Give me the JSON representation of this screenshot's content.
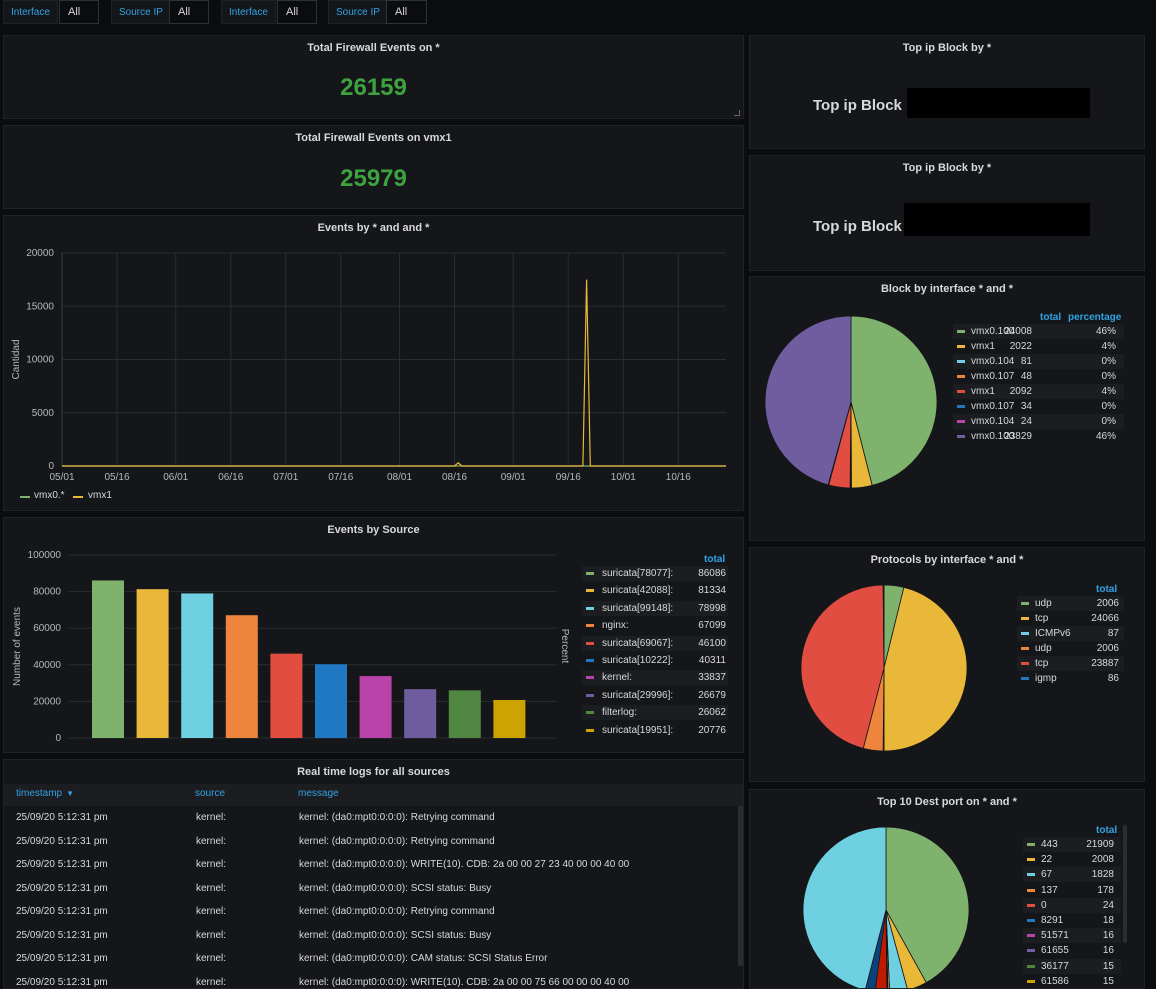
{
  "variables": [
    {
      "label": "Interface",
      "value": "All"
    },
    {
      "label": "Source IP",
      "value": "All"
    },
    {
      "label": "Interface",
      "value": "All"
    },
    {
      "label": "Source IP",
      "value": "All"
    }
  ],
  "stat1": {
    "title": "Total Firewall Events on *",
    "value": "26159"
  },
  "stat2": {
    "title": "Total Firewall Events on vmx1",
    "value": "25979"
  },
  "topip1": {
    "title": "Top ip Block by *",
    "label": "Top ip Block"
  },
  "topip2": {
    "title": "Top ip Block by *",
    "label": "Top ip Block"
  },
  "colors": {
    "green": "#7eb26d",
    "yellow": "#eab839",
    "cyan": "#6ed0e0",
    "orange": "#ef843c",
    "red": "#e24d42",
    "blue": "#1f78c1",
    "magenta": "#ba43a9",
    "purple": "#705da0",
    "darkgreen": "#508642",
    "gold": "#cca300",
    "accent": "#33a2e5",
    "stat": "#3ea33f"
  },
  "events_line": {
    "title": "Events by * and and *",
    "chart_data": {
      "type": "line",
      "ylabel": "Cantidad",
      "ylim": [
        0,
        20000
      ],
      "yticks": [
        0,
        5000,
        10000,
        15000,
        20000
      ],
      "xticks": [
        "05/01",
        "05/16",
        "06/01",
        "06/16",
        "07/01",
        "07/16",
        "08/01",
        "08/16",
        "09/01",
        "09/16",
        "10/01",
        "10/16"
      ],
      "x_range": [
        "05/01",
        "10/29"
      ],
      "series": [
        {
          "name": "vmx0.*",
          "color": "#7eb26d",
          "points": [
            [
              "05/01",
              0
            ],
            [
              "10/29",
              0
            ]
          ]
        },
        {
          "name": "vmx1",
          "color": "#eab839",
          "points": [
            [
              "05/01",
              0
            ],
            [
              "08/16",
              0
            ],
            [
              "08/17",
              300
            ],
            [
              "08/18",
              0
            ],
            [
              "09/20",
              0
            ],
            [
              "09/21",
              17500
            ],
            [
              "09/22",
              0
            ],
            [
              "10/29",
              0
            ]
          ]
        }
      ]
    }
  },
  "events_source": {
    "title": "Events by Source",
    "legend_header": "total",
    "right_axis_label": "Percent",
    "chart_data": {
      "type": "bar",
      "ylabel": "Number of events",
      "ylim": [
        0,
        100000
      ],
      "yticks": [
        0,
        20000,
        40000,
        60000,
        80000,
        100000
      ],
      "categories": [
        "suricata[78077]:",
        "suricata[42088]:",
        "suricata[99148]:",
        "nginx:",
        "suricata[69067]:",
        "suricata[10222]:",
        "kernel:",
        "suricata[29996]:",
        "filterlog:",
        "suricata[19951]:"
      ],
      "values": [
        86086,
        81334,
        78998,
        67099,
        46100,
        40311,
        33837,
        26679,
        26062,
        20776
      ],
      "colors": [
        "#7eb26d",
        "#eab839",
        "#6ed0e0",
        "#ef843c",
        "#e24d42",
        "#1f78c1",
        "#ba43a9",
        "#705da0",
        "#508642",
        "#cca300"
      ]
    }
  },
  "block_pie": {
    "title": "Block by interface * and *",
    "headers": {
      "total": "total",
      "percentage": "percentage"
    },
    "chart_data": {
      "type": "pie",
      "labels": [
        "vmx0.100",
        "vmx1",
        "vmx0.104",
        "vmx0.107",
        "vmx1",
        "vmx0.107",
        "vmx0.104",
        "vmx0.100"
      ],
      "values": [
        24008,
        2022,
        81,
        48,
        2092,
        34,
        24,
        23829
      ],
      "percent": [
        "46%",
        "4%",
        "0%",
        "0%",
        "4%",
        "0%",
        "0%",
        "46%"
      ],
      "colors": [
        "#7eb26d",
        "#eab839",
        "#6ed0e0",
        "#ef843c",
        "#e24d42",
        "#1f78c1",
        "#ba43a9",
        "#705da0"
      ]
    }
  },
  "proto_pie": {
    "title": "Protocols by interface * and *",
    "headers": {
      "total": "total"
    },
    "chart_data": {
      "type": "pie",
      "labels": [
        "udp",
        "tcp",
        "ICMPv6",
        "udp",
        "tcp",
        "igmp"
      ],
      "values": [
        2006,
        24066,
        87,
        2006,
        23887,
        86
      ],
      "colors": [
        "#7eb26d",
        "#eab839",
        "#6ed0e0",
        "#ef843c",
        "#e24d42",
        "#1f78c1"
      ]
    }
  },
  "dest_pie": {
    "title": "Top 10 Dest port on * and *",
    "headers": {
      "total": "total"
    },
    "chart_data": {
      "type": "pie",
      "labels": [
        "443",
        "22",
        "67",
        "137",
        "0",
        "8291",
        "51571",
        "61655",
        "36177",
        "61586"
      ],
      "values": [
        21909,
        2008,
        1828,
        178,
        24,
        18,
        16,
        16,
        15,
        15
      ],
      "colors": [
        "#7eb26d",
        "#eab839",
        "#6ed0e0",
        "#ef843c",
        "#e24d42",
        "#1f78c1",
        "#ba43a9",
        "#705da0",
        "#508642",
        "#cca300"
      ],
      "drawn_values": [
        21909,
        2008,
        1828,
        178,
        24,
        18,
        16,
        16,
        15,
        15,
        1200,
        1000,
        24000
      ],
      "drawn_colors": [
        "#7eb26d",
        "#eab839",
        "#6ed0e0",
        "#ef843c",
        "#e24d42",
        "#1f78c1",
        "#ba43a9",
        "#705da0",
        "#508642",
        "#cca300",
        "#bf1b00",
        "#0a437c",
        "#6ed0e0"
      ]
    }
  },
  "logs": {
    "title": "Real time logs for all sources",
    "columns": {
      "timestamp": "timestamp",
      "source": "source",
      "message": "message"
    },
    "rows": [
      {
        "timestamp": "25/09/20 5:12:31 pm",
        "source": "kernel:",
        "message": "kernel: (da0:mpt0:0:0:0): Retrying command"
      },
      {
        "timestamp": "25/09/20 5:12:31 pm",
        "source": "kernel:",
        "message": "kernel: (da0:mpt0:0:0:0): Retrying command"
      },
      {
        "timestamp": "25/09/20 5:12:31 pm",
        "source": "kernel:",
        "message": "kernel: (da0:mpt0:0:0:0): WRITE(10). CDB: 2a 00 00 27 23 40 00 00 40 00"
      },
      {
        "timestamp": "25/09/20 5:12:31 pm",
        "source": "kernel:",
        "message": "kernel: (da0:mpt0:0:0:0): SCSI status: Busy"
      },
      {
        "timestamp": "25/09/20 5:12:31 pm",
        "source": "kernel:",
        "message": "kernel: (da0:mpt0:0:0:0): Retrying command"
      },
      {
        "timestamp": "25/09/20 5:12:31 pm",
        "source": "kernel:",
        "message": "kernel: (da0:mpt0:0:0:0): SCSI status: Busy"
      },
      {
        "timestamp": "25/09/20 5:12:31 pm",
        "source": "kernel:",
        "message": "kernel: (da0:mpt0:0:0:0): CAM status: SCSI Status Error"
      },
      {
        "timestamp": "25/09/20 5:12:31 pm",
        "source": "kernel:",
        "message": "kernel: (da0:mpt0:0:0:0): WRITE(10). CDB: 2a 00 00 75 66 00 00 00 40 00"
      }
    ]
  }
}
